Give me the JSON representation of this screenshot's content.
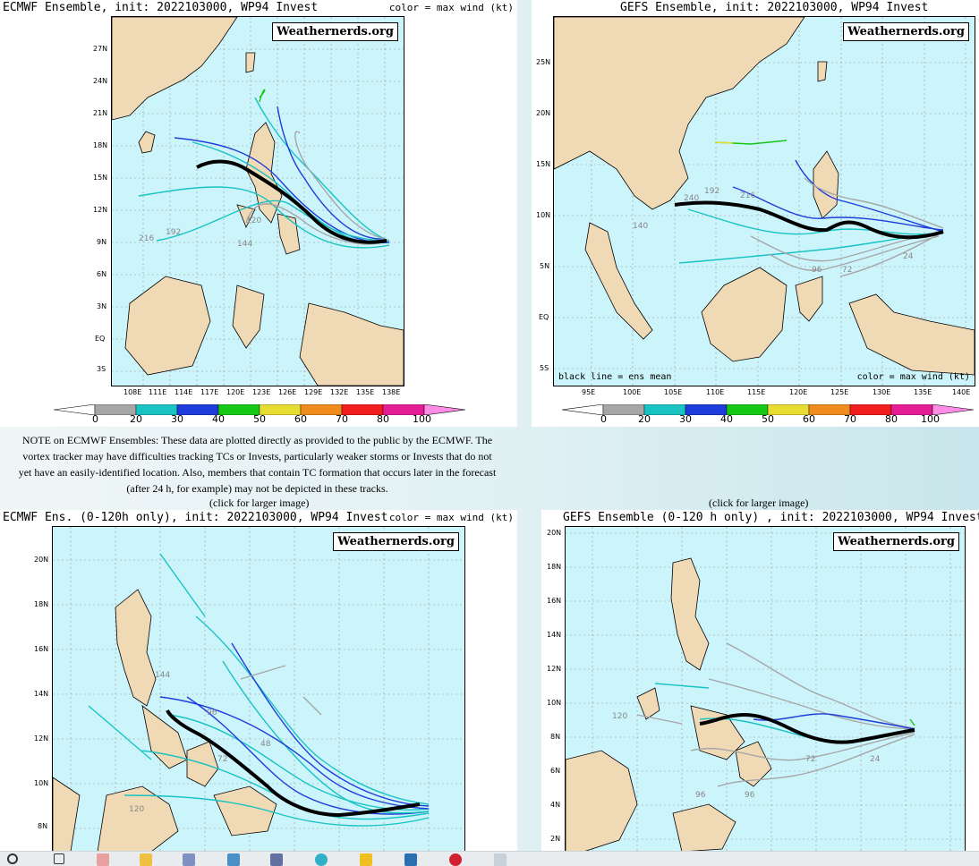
{
  "panels": {
    "ecmwf": {
      "title": "ECMWF Ensemble, init: 2022103000, WP94 Invest",
      "legend_note": "color = max wind (kt)",
      "badge": "Weathernerds.org",
      "lat_labels": [
        "27N",
        "24N",
        "21N",
        "18N",
        "15N",
        "12N",
        "9N",
        "6N",
        "3N",
        "EQ",
        "3S"
      ],
      "lon_labels": [
        "108E",
        "111E",
        "114E",
        "117E",
        "120E",
        "123E",
        "126E",
        "129E",
        "132E",
        "135E",
        "138E"
      ]
    },
    "gefs": {
      "title": "GEFS Ensemble, init: 2022103000, WP94 Invest",
      "badge": "Weathernerds.org",
      "mean_note": "black line = ens mean",
      "legend_note": "color = max wind (kt)",
      "lat_labels": [
        "25N",
        "20N",
        "15N",
        "10N",
        "5N",
        "EQ",
        "5S"
      ],
      "lon_labels": [
        "95E",
        "100E",
        "105E",
        "110E",
        "115E",
        "120E",
        "125E",
        "130E",
        "135E",
        "140E"
      ]
    },
    "ecmwf120": {
      "title": "ECMWF Ens. (0-120h only), init: 2022103000, WP94 Invest",
      "legend_note": "color = max wind (kt)",
      "badge": "Weathernerds.org",
      "lat_labels": [
        "20N",
        "18N",
        "16N",
        "14N",
        "12N",
        "10N",
        "8N"
      ]
    },
    "gefs120": {
      "title": "GEFS Ensemble (0-120 h only) , init: 2022103000, WP94 Invest",
      "badge": "Weathernerds.org",
      "lat_labels": [
        "20N",
        "18N",
        "16N",
        "14N",
        "12N",
        "10N",
        "8N",
        "6N",
        "4N",
        "2N"
      ]
    }
  },
  "colorbar": {
    "labels": [
      "0",
      "20",
      "30",
      "40",
      "50",
      "60",
      "70",
      "80",
      "100"
    ],
    "colors": [
      "#a6a6a6",
      "#19c3c3",
      "#1e3cdc",
      "#14c814",
      "#e6dc32",
      "#f08c1e",
      "#f01e1e",
      "#e61e96",
      "#ff8ce6"
    ]
  },
  "note": "NOTE on ECMWF Ensembles: These data are plotted directly as provided to the public by the ECMWF. The vortex tracker may have difficulties tracking TCs or Invests, particularly weaker storms or Invests that do not yet have an easily-identified location. Also, members that contain TC formation that occurs later in the forecast (after 24 h, for example) may not be depicted in these tracks.",
  "click_label": "(click for larger image)",
  "track_labels": {
    "ecmwf": [
      "216",
      "192",
      "144",
      "120"
    ],
    "gefs": [
      "240",
      "216",
      "192",
      "140",
      "96",
      "72",
      "24"
    ]
  }
}
